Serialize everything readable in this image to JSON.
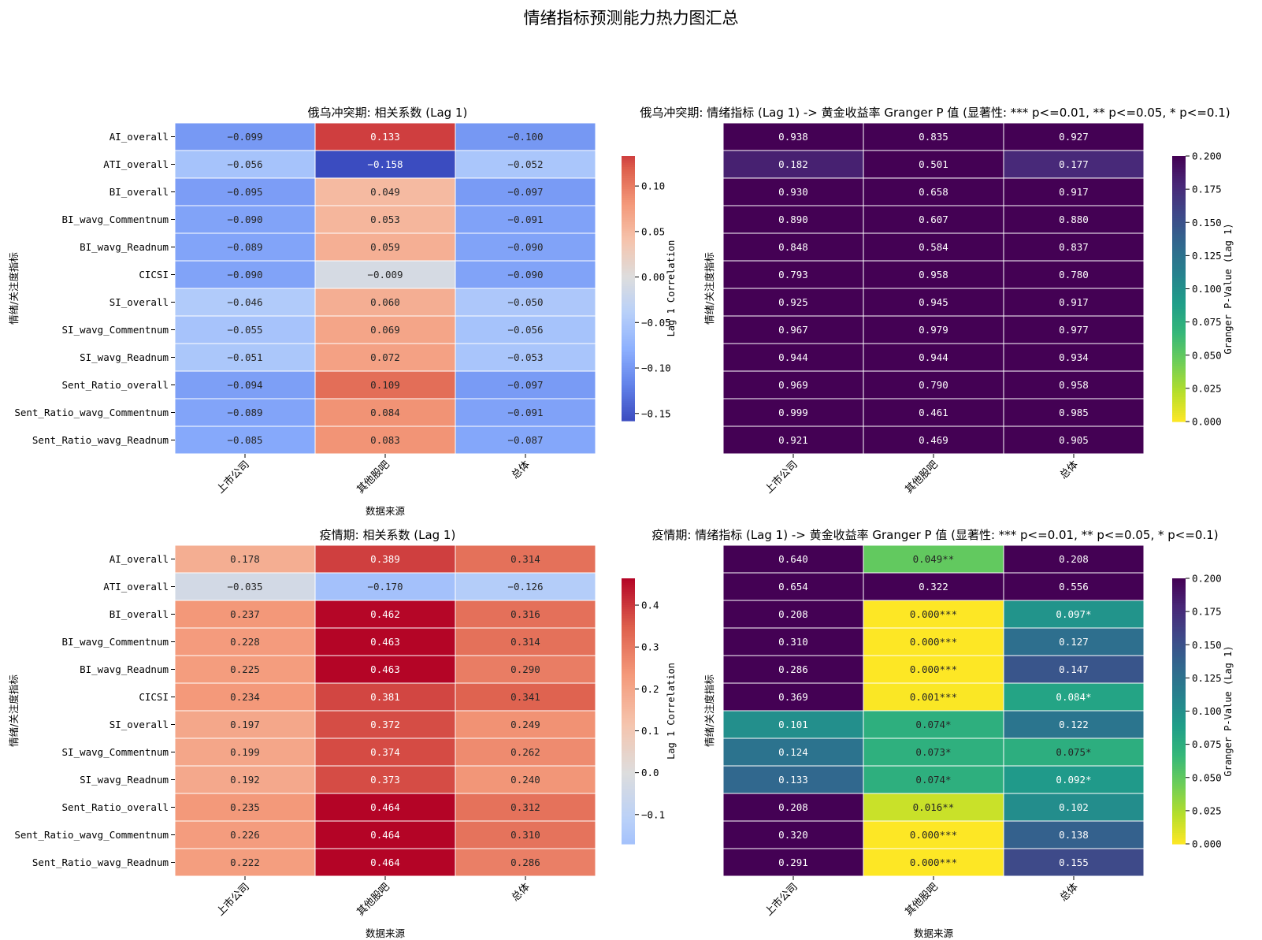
{
  "figure": {
    "suptitle": "情绪指标预测能力热力图汇总"
  },
  "rows": [
    "AI_overall",
    "ATI_overall",
    "BI_overall",
    "BI_wavg_Commentnum",
    "BI_wavg_Readnum",
    "CICSI",
    "SI_overall",
    "SI_wavg_Commentnum",
    "SI_wavg_Readnum",
    "Sent_Ratio_overall",
    "Sent_Ratio_wavg_Commentnum",
    "Sent_Ratio_wavg_Readnum"
  ],
  "columns": [
    "上市公司",
    "其他股吧",
    "总体"
  ],
  "chart_data": [
    {
      "id": "corr_war",
      "type": "heatmap",
      "title": "俄乌冲突期: 相关系数 (Lag 1)",
      "xlabel": "数据来源",
      "ylabel": "情绪/关注度指标",
      "colorbar_label": "Lag 1 Correlation",
      "colormap": "coolwarm",
      "vmin": -0.158,
      "vmax": 0.133,
      "center": 0,
      "colorbar_ticks": [
        -0.15,
        -0.1,
        -0.05,
        0.0,
        0.05,
        0.1
      ],
      "colorbar_ticklabels": [
        "−0.15",
        "−0.10",
        "−0.05",
        "0.00",
        "0.05",
        "0.10"
      ],
      "values": [
        [
          -0.099,
          0.133,
          -0.1
        ],
        [
          -0.056,
          -0.158,
          -0.052
        ],
        [
          -0.095,
          0.049,
          -0.097
        ],
        [
          -0.09,
          0.053,
          -0.091
        ],
        [
          -0.089,
          0.059,
          -0.09
        ],
        [
          -0.09,
          -0.009,
          -0.09
        ],
        [
          -0.046,
          0.06,
          -0.05
        ],
        [
          -0.055,
          0.069,
          -0.056
        ],
        [
          -0.051,
          0.072,
          -0.053
        ],
        [
          -0.094,
          0.109,
          -0.097
        ],
        [
          -0.089,
          0.084,
          -0.091
        ],
        [
          -0.085,
          0.083,
          -0.087
        ]
      ],
      "labels": [
        [
          "−0.099",
          "0.133",
          "−0.100"
        ],
        [
          "−0.056",
          "−0.158",
          "−0.052"
        ],
        [
          "−0.095",
          "0.049",
          "−0.097"
        ],
        [
          "−0.090",
          "0.053",
          "−0.091"
        ],
        [
          "−0.089",
          "0.059",
          "−0.090"
        ],
        [
          "−0.090",
          "−0.009",
          "−0.090"
        ],
        [
          "−0.046",
          "0.060",
          "−0.050"
        ],
        [
          "−0.055",
          "0.069",
          "−0.056"
        ],
        [
          "−0.051",
          "0.072",
          "−0.053"
        ],
        [
          "−0.094",
          "0.109",
          "−0.097"
        ],
        [
          "−0.089",
          "0.084",
          "−0.091"
        ],
        [
          "−0.085",
          "0.083",
          "−0.087"
        ]
      ]
    },
    {
      "id": "granger_war",
      "type": "heatmap",
      "title": "俄乌冲突期: 情绪指标 (Lag 1) -> 黄金收益率 Granger P 值 (显著性: *** p<=0.01, ** p<=0.05, * p<=0.1)",
      "xlabel": "",
      "ylabel": "情绪/关注度指标",
      "colorbar_label": "Granger P-Value (Lag 1)",
      "colormap": "viridis_r",
      "vmin": 0,
      "vmax": 0.2,
      "colorbar_ticks": [
        0,
        0.025,
        0.05,
        0.075,
        0.1,
        0.125,
        0.15,
        0.175,
        0.2
      ],
      "colorbar_ticklabels": [
        "0.000",
        "0.025",
        "0.050",
        "0.075",
        "0.100",
        "0.125",
        "0.150",
        "0.175",
        "0.200"
      ],
      "values": [
        [
          0.938,
          0.835,
          0.927
        ],
        [
          0.182,
          0.501,
          0.177
        ],
        [
          0.93,
          0.658,
          0.917
        ],
        [
          0.89,
          0.607,
          0.88
        ],
        [
          0.848,
          0.584,
          0.837
        ],
        [
          0.793,
          0.958,
          0.78
        ],
        [
          0.925,
          0.945,
          0.917
        ],
        [
          0.967,
          0.979,
          0.977
        ],
        [
          0.944,
          0.944,
          0.934
        ],
        [
          0.969,
          0.79,
          0.958
        ],
        [
          0.999,
          0.461,
          0.985
        ],
        [
          0.921,
          0.469,
          0.905
        ]
      ],
      "labels": [
        [
          "0.938",
          "0.835",
          "0.927"
        ],
        [
          "0.182",
          "0.501",
          "0.177"
        ],
        [
          "0.930",
          "0.658",
          "0.917"
        ],
        [
          "0.890",
          "0.607",
          "0.880"
        ],
        [
          "0.848",
          "0.584",
          "0.837"
        ],
        [
          "0.793",
          "0.958",
          "0.780"
        ],
        [
          "0.925",
          "0.945",
          "0.917"
        ],
        [
          "0.967",
          "0.979",
          "0.977"
        ],
        [
          "0.944",
          "0.944",
          "0.934"
        ],
        [
          "0.969",
          "0.790",
          "0.958"
        ],
        [
          "0.999",
          "0.461",
          "0.985"
        ],
        [
          "0.921",
          "0.469",
          "0.905"
        ]
      ]
    },
    {
      "id": "corr_covid",
      "type": "heatmap",
      "title": "疫情期: 相关系数 (Lag 1)",
      "xlabel": "数据来源",
      "ylabel": "情绪/关注度指标",
      "colorbar_label": "Lag 1 Correlation",
      "colormap": "coolwarm",
      "vmin": -0.17,
      "vmax": 0.464,
      "center": 0,
      "colorbar_ticks": [
        -0.1,
        0.0,
        0.1,
        0.2,
        0.3,
        0.4
      ],
      "colorbar_ticklabels": [
        "−0.1",
        "0.0",
        "0.1",
        "0.2",
        "0.3",
        "0.4"
      ],
      "values": [
        [
          0.178,
          0.389,
          0.314
        ],
        [
          -0.035,
          -0.17,
          -0.126
        ],
        [
          0.237,
          0.462,
          0.316
        ],
        [
          0.228,
          0.463,
          0.314
        ],
        [
          0.225,
          0.463,
          0.29
        ],
        [
          0.234,
          0.381,
          0.341
        ],
        [
          0.197,
          0.372,
          0.249
        ],
        [
          0.199,
          0.374,
          0.262
        ],
        [
          0.192,
          0.373,
          0.24
        ],
        [
          0.235,
          0.464,
          0.312
        ],
        [
          0.226,
          0.464,
          0.31
        ],
        [
          0.222,
          0.464,
          0.286
        ]
      ],
      "labels": [
        [
          "0.178",
          "0.389",
          "0.314"
        ],
        [
          "−0.035",
          "−0.170",
          "−0.126"
        ],
        [
          "0.237",
          "0.462",
          "0.316"
        ],
        [
          "0.228",
          "0.463",
          "0.314"
        ],
        [
          "0.225",
          "0.463",
          "0.290"
        ],
        [
          "0.234",
          "0.381",
          "0.341"
        ],
        [
          "0.197",
          "0.372",
          "0.249"
        ],
        [
          "0.199",
          "0.374",
          "0.262"
        ],
        [
          "0.192",
          "0.373",
          "0.240"
        ],
        [
          "0.235",
          "0.464",
          "0.312"
        ],
        [
          "0.226",
          "0.464",
          "0.310"
        ],
        [
          "0.222",
          "0.464",
          "0.286"
        ]
      ]
    },
    {
      "id": "granger_covid",
      "type": "heatmap",
      "title": "疫情期: 情绪指标 (Lag 1) -> 黄金收益率 Granger P 值 (显著性: *** p<=0.01, ** p<=0.05, * p<=0.1)",
      "xlabel": "数据来源",
      "ylabel": "情绪/关注度指标",
      "colorbar_label": "Granger P-Value (Lag 1)",
      "colormap": "viridis_r",
      "vmin": 0,
      "vmax": 0.2,
      "colorbar_ticks": [
        0,
        0.025,
        0.05,
        0.075,
        0.1,
        0.125,
        0.15,
        0.175,
        0.2
      ],
      "colorbar_ticklabels": [
        "0.000",
        "0.025",
        "0.050",
        "0.075",
        "0.100",
        "0.125",
        "0.150",
        "0.175",
        "0.200"
      ],
      "values": [
        [
          0.64,
          0.049,
          0.208
        ],
        [
          0.654,
          0.322,
          0.556
        ],
        [
          0.208,
          0.0,
          0.097
        ],
        [
          0.31,
          0.0,
          0.127
        ],
        [
          0.286,
          0.0,
          0.147
        ],
        [
          0.369,
          0.001,
          0.084
        ],
        [
          0.101,
          0.074,
          0.122
        ],
        [
          0.124,
          0.073,
          0.075
        ],
        [
          0.133,
          0.074,
          0.092
        ],
        [
          0.208,
          0.016,
          0.102
        ],
        [
          0.32,
          0.0,
          0.138
        ],
        [
          0.291,
          0.0,
          0.155
        ]
      ],
      "labels": [
        [
          "0.640",
          "0.049**",
          "0.208"
        ],
        [
          "0.654",
          "0.322",
          "0.556"
        ],
        [
          "0.208",
          "0.000***",
          "0.097*"
        ],
        [
          "0.310",
          "0.000***",
          "0.127"
        ],
        [
          "0.286",
          "0.000***",
          "0.147"
        ],
        [
          "0.369",
          "0.001***",
          "0.084*"
        ],
        [
          "0.101",
          "0.074*",
          "0.122"
        ],
        [
          "0.124",
          "0.073*",
          "0.075*"
        ],
        [
          "0.133",
          "0.074*",
          "0.092*"
        ],
        [
          "0.208",
          "0.016**",
          "0.102"
        ],
        [
          "0.320",
          "0.000***",
          "0.138"
        ],
        [
          "0.291",
          "0.000***",
          "0.155"
        ]
      ]
    }
  ]
}
